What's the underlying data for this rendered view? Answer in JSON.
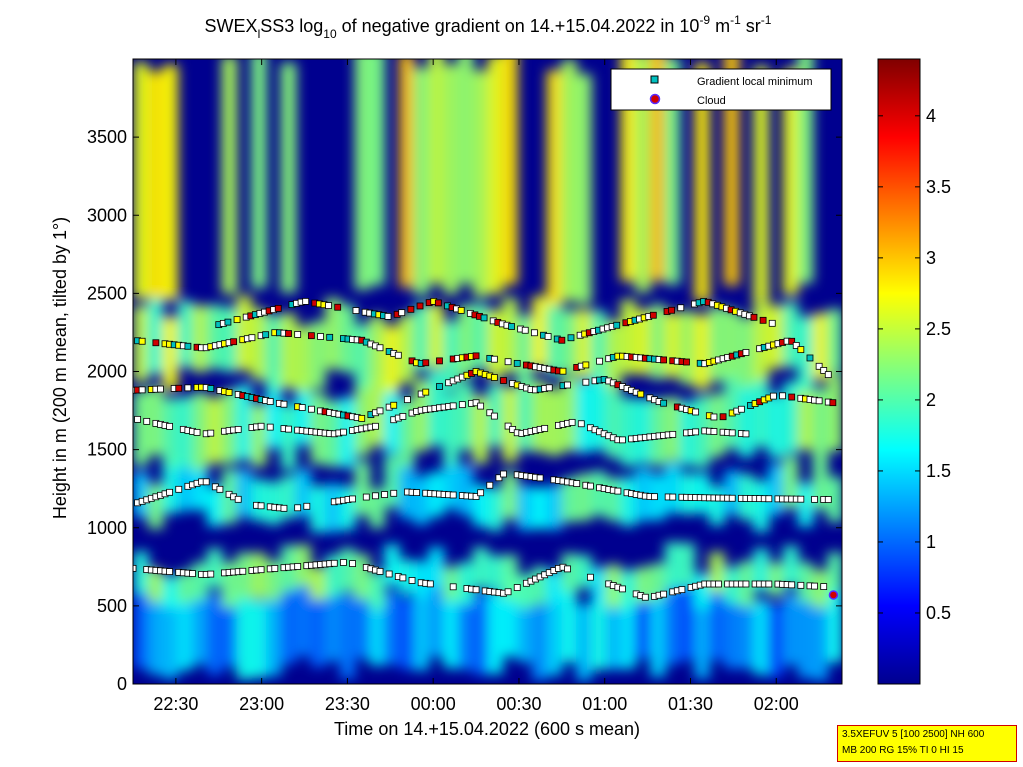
{
  "chart_data": {
    "type": "heatmap",
    "title": {
      "prefix": "SWEX",
      "sub1": "l",
      "mid": "SS3 log",
      "sub2": "10",
      "text": " of negative gradient on 14.+15.04.2022 in 10",
      "sup1": "-9",
      "unit1": " m",
      "sup2": "-1",
      "unit2": " sr",
      "sup3": "-1"
    },
    "xlabel": "Time on 14.+15.04.2022 (600 s mean)",
    "ylabel": "Height in m (200 m mean, tilted by 1°)",
    "x_ticks": [
      "22:30",
      "23:00",
      "23:30",
      "00:00",
      "00:30",
      "01:00",
      "01:30",
      "02:00"
    ],
    "x_tick_minutes": [
      15,
      45,
      75,
      105,
      135,
      165,
      195,
      225
    ],
    "xlim_minutes": [
      0,
      248
    ],
    "x_origin_time": "22:15",
    "y_ticks": [
      "0",
      "500",
      "1000",
      "1500",
      "2000",
      "2500",
      "3000",
      "3500"
    ],
    "ylim": [
      0,
      4000
    ],
    "colorbar": {
      "ticks": [
        "0.5",
        "1",
        "1.5",
        "2",
        "2.5",
        "3",
        "3.5",
        "4"
      ],
      "range": [
        0,
        4.4
      ],
      "colormap": "jet"
    },
    "legend": {
      "placement": "top-right",
      "entries": [
        {
          "label": "Gradient local minimum",
          "marker": "square",
          "color": "#00bfbf"
        },
        {
          "label": "Cloud",
          "marker": "circle",
          "color": "#d00000"
        }
      ]
    },
    "layers": [
      {
        "name": "ground",
        "heights": [
          100,
          600
        ],
        "value": 1.3
      },
      {
        "name": "layer1",
        "heights": [
          550,
          800
        ],
        "value": 2.0
      },
      {
        "name": "layer2",
        "heights": [
          1050,
          1350
        ],
        "value": 1.8
      },
      {
        "name": "layer3",
        "heights": [
          1450,
          1900
        ],
        "value": 2.1
      },
      {
        "name": "layer4",
        "heights": [
          1950,
          2400
        ],
        "value": 2.3
      },
      {
        "name": "upper",
        "heights": [
          2500,
          4000
        ],
        "value": 2.6
      }
    ],
    "minima_tracks": [
      {
        "name": "track-1",
        "times": [
          0,
          25,
          75,
          100,
          130,
          150,
          165,
          180,
          200,
          225,
          245
        ],
        "heights": [
          740,
          700,
          780,
          650,
          580,
          750,
          650,
          550,
          640,
          640,
          620
        ]
      },
      {
        "name": "track-2",
        "times": [
          0,
          25,
          40,
          55,
          75,
          95,
          120,
          130,
          150,
          180,
          205,
          245
        ],
        "heights": [
          1150,
          1300,
          1150,
          1120,
          1180,
          1230,
          1200,
          1350,
          1300,
          1200,
          1190,
          1180
        ]
      },
      {
        "name": "track-3",
        "times": [
          0,
          25,
          45,
          70,
          85,
          100,
          120,
          135,
          155,
          170,
          200,
          215
        ],
        "heights": [
          1700,
          1600,
          1650,
          1600,
          1650,
          1750,
          1800,
          1600,
          1680,
          1560,
          1620,
          1600
        ]
      },
      {
        "name": "track-4",
        "times": [
          0,
          25,
          50,
          80,
          100,
          120,
          140,
          165,
          185,
          205,
          225,
          245
        ],
        "heights": [
          1880,
          1900,
          1800,
          1700,
          1850,
          2000,
          1880,
          1950,
          1800,
          1700,
          1850,
          1800
        ]
      },
      {
        "name": "track-5",
        "times": [
          0,
          25,
          50,
          80,
          100,
          120,
          150,
          170,
          200,
          230,
          245
        ],
        "heights": [
          2200,
          2150,
          2250,
          2200,
          2050,
          2100,
          2000,
          2100,
          2050,
          2200,
          1950
        ]
      },
      {
        "name": "track-6",
        "times": [
          30,
          60,
          90,
          105,
          130,
          150,
          200,
          225
        ],
        "heights": [
          2300,
          2450,
          2350,
          2450,
          2300,
          2200,
          2450,
          2300
        ]
      }
    ],
    "cloud_points": [
      [
        245,
        570
      ]
    ]
  },
  "info_box": {
    "line1": "3.5XEFUV 5 [100 2500] NH 600",
    "line2": "MB 200 RG 15% TI 0 HI 15",
    "background": "#ffff00",
    "border": "#d00000"
  }
}
